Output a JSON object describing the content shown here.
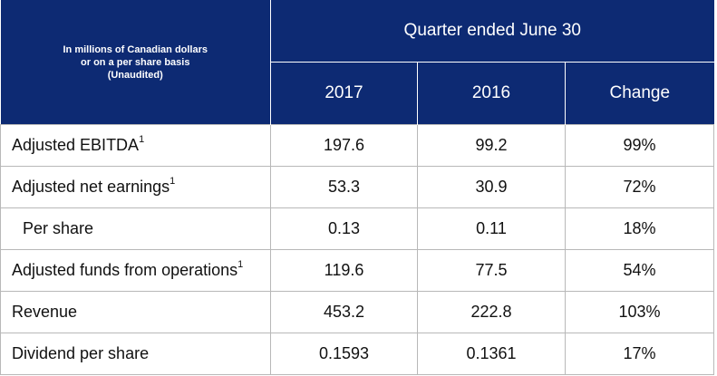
{
  "header": {
    "caption_lines": [
      "In millions of Canadian dollars",
      "or on a per share basis",
      "(Unaudited)"
    ],
    "period_label": "Quarter ended June 30",
    "columns": [
      "2017",
      "2016",
      "Change"
    ]
  },
  "rows": [
    {
      "label": "Adjusted EBITDA",
      "footnote": "1",
      "v2017": "197.6",
      "v2016": "99.2",
      "change": "99%"
    },
    {
      "label": "Adjusted net earnings",
      "footnote": "1",
      "v2017": "53.3",
      "v2016": "30.9",
      "change": "72%"
    },
    {
      "label": "Per share",
      "footnote": "",
      "v2017": "0.13",
      "v2016": "0.11",
      "change": "18%"
    },
    {
      "label": "Adjusted funds from operations",
      "footnote": "1",
      "v2017": "119.6",
      "v2016": "77.5",
      "change": "54%"
    },
    {
      "label": "Revenue",
      "footnote": "",
      "v2017": "453.2",
      "v2016": "222.8",
      "change": "103%"
    },
    {
      "label": "Dividend per share",
      "footnote": "",
      "v2017": "0.1593",
      "v2016": "0.1361",
      "change": "17%"
    }
  ]
}
